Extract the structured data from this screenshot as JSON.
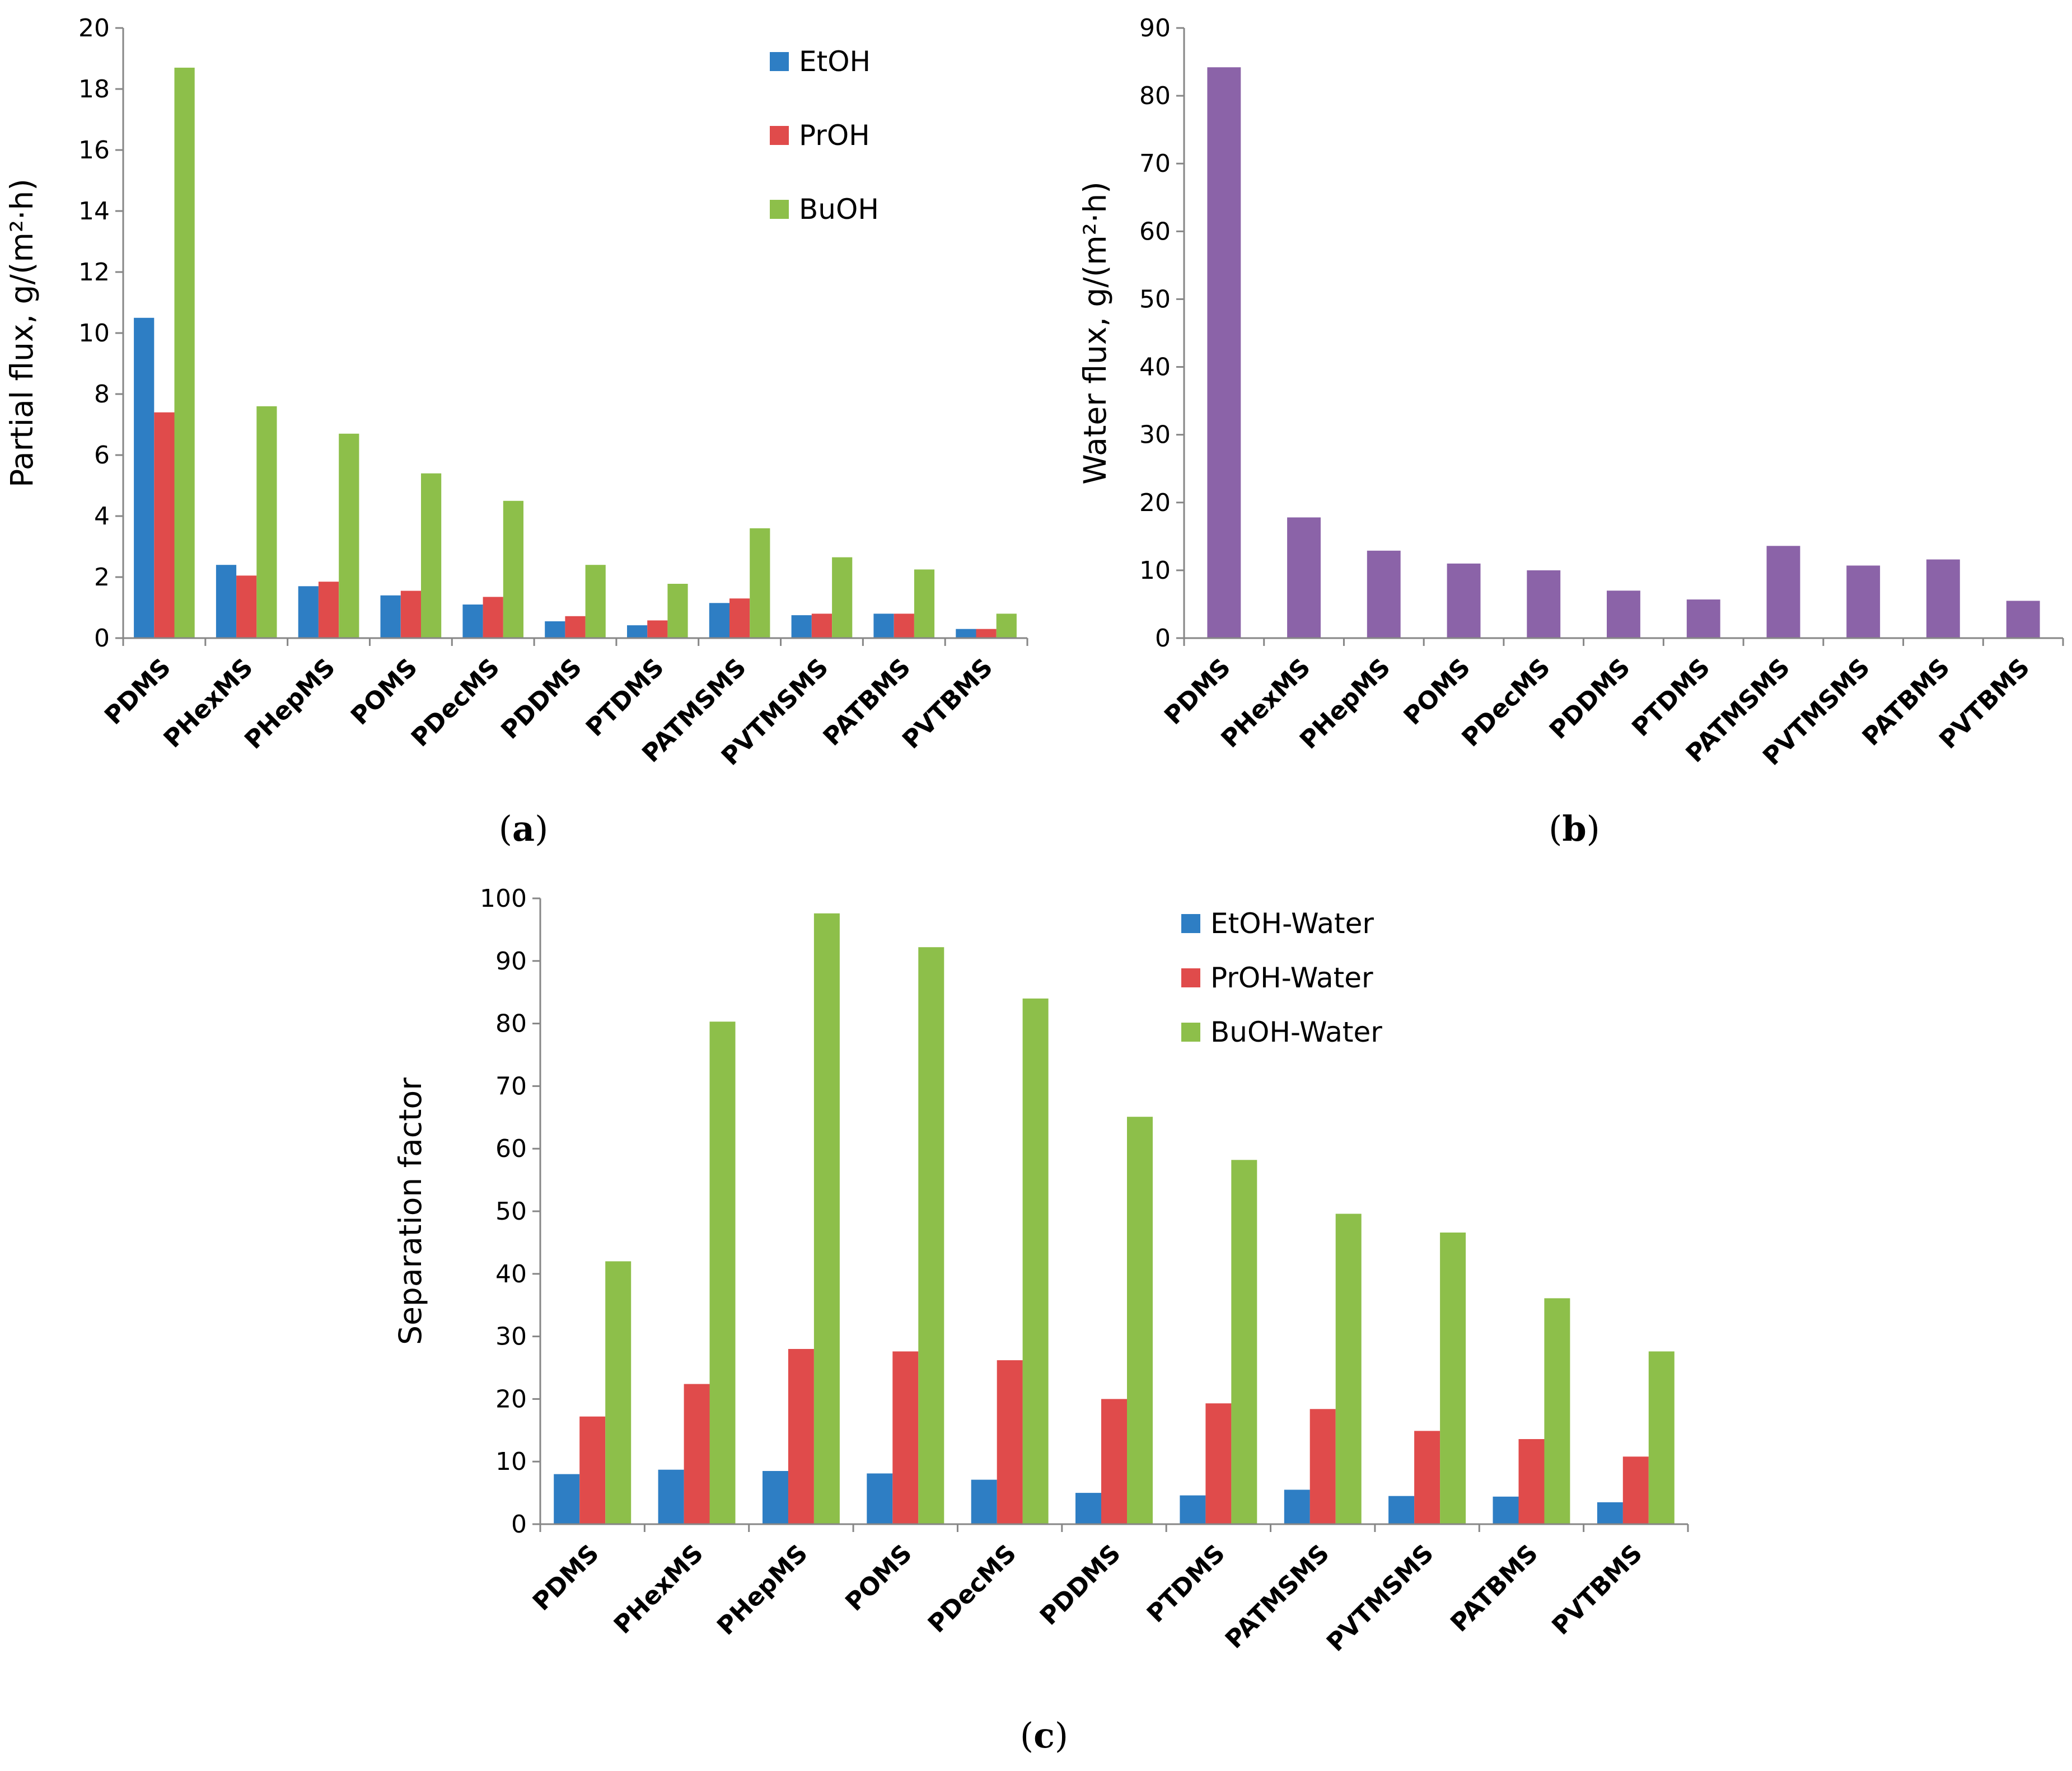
{
  "chart_data": [
    {
      "type": "bar",
      "panel_label": "a",
      "categories": [
        "PDMS",
        "PHexMS",
        "PHepMS",
        "POMS",
        "PDecMS",
        "PDDMS",
        "PTDMS",
        "PATMSMS",
        "PVTMSMS",
        "PATBMS",
        "PVTBMS"
      ],
      "series": [
        {
          "name": "EtOH",
          "color": "#2e7ec4",
          "values": [
            10.5,
            2.4,
            1.7,
            1.4,
            1.1,
            0.55,
            0.42,
            1.15,
            0.75,
            0.8,
            0.3
          ]
        },
        {
          "name": "PrOH",
          "color": "#e04b4b",
          "values": [
            7.4,
            2.05,
            1.85,
            1.55,
            1.35,
            0.72,
            0.58,
            1.3,
            0.8,
            0.8,
            0.3
          ]
        },
        {
          "name": "BuOH",
          "color": "#8dbf4a",
          "values": [
            18.7,
            7.6,
            6.7,
            5.4,
            4.5,
            2.4,
            1.78,
            3.6,
            2.65,
            2.25,
            0.8
          ]
        }
      ],
      "ylabel": "Partial flux, g/(m²·h)",
      "ylim": [
        0,
        20
      ],
      "yticks": [
        "0",
        "2",
        "4",
        "6",
        "8",
        "10",
        "12",
        "14",
        "16",
        "18",
        "20"
      ],
      "legend": "top-right"
    },
    {
      "type": "bar",
      "panel_label": "b",
      "categories": [
        "PDMS",
        "PHexMS",
        "PHepMS",
        "POMS",
        "PDecMS",
        "PDDMS",
        "PTDMS",
        "PATMSMS",
        "PVTMSMS",
        "PATBMS",
        "PVTBMS"
      ],
      "series": [
        {
          "name": "Water",
          "color": "#8b63a8",
          "values": [
            84.2,
            17.8,
            12.9,
            11.0,
            10.0,
            7.0,
            5.7,
            13.6,
            10.7,
            11.6,
            5.5
          ]
        }
      ],
      "ylabel": "Water flux, g/(m²·h)",
      "ylim": [
        0,
        90
      ],
      "yticks": [
        "0",
        "10",
        "20",
        "30",
        "40",
        "50",
        "60",
        "70",
        "80",
        "90"
      ],
      "legend": "none"
    },
    {
      "type": "bar",
      "panel_label": "c",
      "categories": [
        "PDMS",
        "PHexMS",
        "PHepMS",
        "POMS",
        "PDecMS",
        "PDDMS",
        "PTDMS",
        "PATMSMS",
        "PVTMSMS",
        "PATBMS",
        "PVTBMS"
      ],
      "series": [
        {
          "name": "EtOH-Water",
          "color": "#2e7ec4",
          "values": [
            8.0,
            8.7,
            8.5,
            8.1,
            7.1,
            5.0,
            4.6,
            5.5,
            4.5,
            4.4,
            3.5
          ]
        },
        {
          "name": "PrOH-Water",
          "color": "#e04b4b",
          "values": [
            17.2,
            22.4,
            28.0,
            27.6,
            26.2,
            20.0,
            19.3,
            18.4,
            14.9,
            13.6,
            10.8
          ]
        },
        {
          "name": "BuOH-Water",
          "color": "#8dbf4a",
          "values": [
            42.0,
            80.3,
            97.6,
            92.2,
            84.0,
            65.1,
            58.2,
            49.6,
            46.6,
            36.1,
            27.6
          ]
        }
      ],
      "ylabel": "Separation factor",
      "ylim": [
        0,
        100
      ],
      "yticks": [
        "0",
        "10",
        "20",
        "30",
        "40",
        "50",
        "60",
        "70",
        "80",
        "90",
        "100"
      ],
      "legend": "top-right"
    }
  ]
}
